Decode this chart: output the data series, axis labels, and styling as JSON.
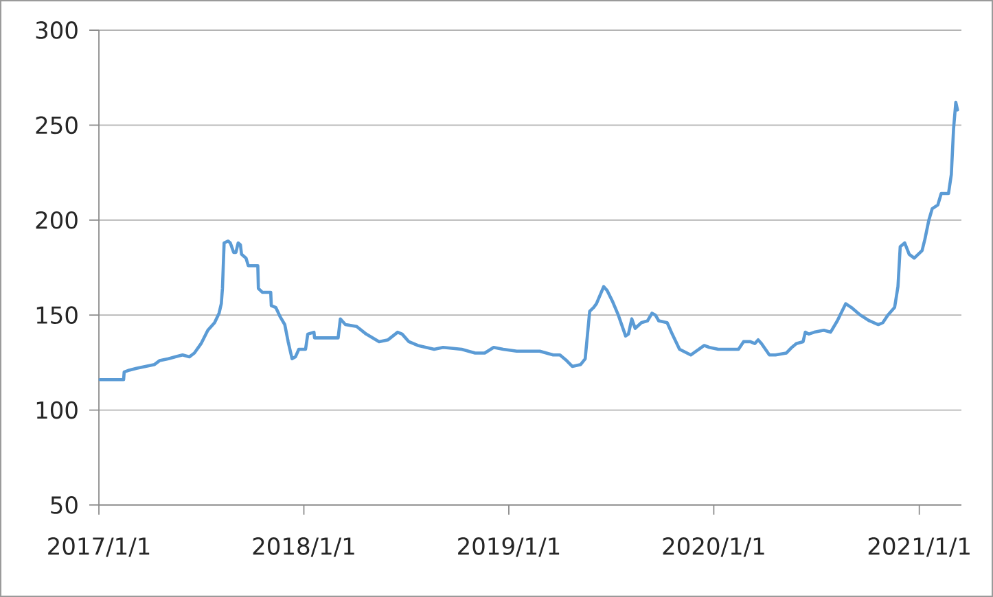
{
  "chart_data": {
    "type": "line",
    "color": "#5b9bd5",
    "x": [
      "2017-01-03",
      "2017-01-12",
      "2017-01-19",
      "2017-01-31",
      "2017-02-03",
      "2017-02-14",
      "2017-02-15",
      "2017-02-24",
      "2017-03-09",
      "2017-03-25",
      "2017-04-10",
      "2017-04-19",
      "2017-05-05",
      "2017-05-17",
      "2017-05-30",
      "2017-06-11",
      "2017-06-20",
      "2017-07-02",
      "2017-07-14",
      "2017-07-26",
      "2017-08-03",
      "2017-08-07",
      "2017-08-09",
      "2017-08-12",
      "2017-08-19",
      "2017-08-23",
      "2017-08-29",
      "2017-09-02",
      "2017-09-06",
      "2017-09-10",
      "2017-09-12",
      "2017-09-20",
      "2017-09-24",
      "2017-10-11",
      "2017-10-12",
      "2017-10-19",
      "2017-11-03",
      "2017-11-04",
      "2017-11-12",
      "2017-11-20",
      "2017-11-28",
      "2017-12-04",
      "2017-12-11",
      "2017-12-17",
      "2017-12-23",
      "2018-01-04",
      "2018-01-08",
      "2018-01-19",
      "2018-01-20",
      "2018-03-03",
      "2018-03-07",
      "2018-03-16",
      "2018-04-05",
      "2018-04-22",
      "2018-05-15",
      "2018-05-31",
      "2018-06-17",
      "2018-06-25",
      "2018-07-07",
      "2018-07-23",
      "2018-08-21",
      "2018-09-06",
      "2018-10-09",
      "2018-11-02",
      "2018-11-19",
      "2018-12-05",
      "2018-12-22",
      "2019-01-15",
      "2019-02-25",
      "2019-03-21",
      "2019-04-02",
      "2019-04-14",
      "2019-04-24",
      "2019-05-09",
      "2019-05-17",
      "2019-05-25",
      "2019-06-01",
      "2019-06-06",
      "2019-06-19",
      "2019-06-25",
      "2019-07-05",
      "2019-07-15",
      "2019-07-28",
      "2019-08-02",
      "2019-08-08",
      "2019-08-14",
      "2019-08-25",
      "2019-09-05",
      "2019-09-13",
      "2019-09-19",
      "2019-09-25",
      "2019-10-10",
      "2019-10-19",
      "2019-11-01",
      "2019-11-21",
      "2019-12-15",
      "2019-12-24",
      "2020-01-09",
      "2020-02-14",
      "2020-02-23",
      "2020-03-06",
      "2020-03-14",
      "2020-03-20",
      "2020-03-26",
      "2020-04-09",
      "2020-04-20",
      "2020-05-09",
      "2020-05-19",
      "2020-05-27",
      "2020-06-08",
      "2020-06-12",
      "2020-06-18",
      "2020-06-28",
      "2020-07-15",
      "2020-07-27",
      "2020-08-08",
      "2020-08-23",
      "2020-09-02",
      "2020-09-18",
      "2020-10-04",
      "2020-10-20",
      "2020-10-28",
      "2020-11-06",
      "2020-11-18",
      "2020-11-24",
      "2020-11-28",
      "2020-12-06",
      "2020-12-14",
      "2020-12-23",
      "2021-01-06",
      "2021-01-11",
      "2021-01-18",
      "2021-01-24",
      "2021-02-03",
      "2021-02-09",
      "2021-02-22",
      "2021-02-27",
      "2021-03-03",
      "2021-03-07",
      "2021-03-10"
    ],
    "values": [
      116,
      116,
      116,
      116,
      116,
      116,
      120,
      121,
      122,
      123,
      124,
      126,
      127,
      128,
      129,
      128,
      130,
      135,
      142,
      146,
      151,
      156,
      164,
      188,
      189,
      188,
      183,
      183,
      188,
      187,
      182,
      180,
      176,
      176,
      164,
      162,
      162,
      155,
      154,
      149,
      145,
      136,
      127,
      128,
      132,
      132,
      140,
      141,
      138,
      138,
      148,
      145,
      144,
      140,
      136,
      137,
      141,
      140,
      136,
      134,
      132,
      133,
      132,
      130,
      130,
      133,
      132,
      131,
      131,
      129,
      129,
      126,
      123,
      124,
      127,
      152,
      154,
      156,
      165,
      163,
      157,
      150,
      139,
      140,
      148,
      143,
      146,
      147,
      151,
      150,
      147,
      146,
      140,
      132,
      129,
      134,
      133,
      132,
      132,
      136,
      136,
      135,
      137,
      135,
      129,
      129,
      130,
      133,
      135,
      136,
      141,
      140,
      141,
      142,
      141,
      147,
      156,
      154,
      150,
      147,
      145,
      146,
      150,
      154,
      165,
      186,
      188,
      182,
      180,
      184,
      190,
      200,
      206,
      208,
      214,
      214,
      224,
      248,
      262,
      258
    ],
    "xlim": [
      "2017-01-01",
      "2021-03-17"
    ],
    "xticks": [
      {
        "value": "2017-01-01",
        "label": "2017/1/1"
      },
      {
        "value": "2018-01-01",
        "label": "2018/1/1"
      },
      {
        "value": "2019-01-01",
        "label": "2019/1/1"
      },
      {
        "value": "2020-01-01",
        "label": "2020/1/1"
      },
      {
        "value": "2021-01-01",
        "label": "2021/1/1"
      }
    ],
    "ylim": [
      50,
      300
    ],
    "yticks": [
      50,
      100,
      150,
      200,
      250,
      300
    ],
    "grid": "y"
  }
}
